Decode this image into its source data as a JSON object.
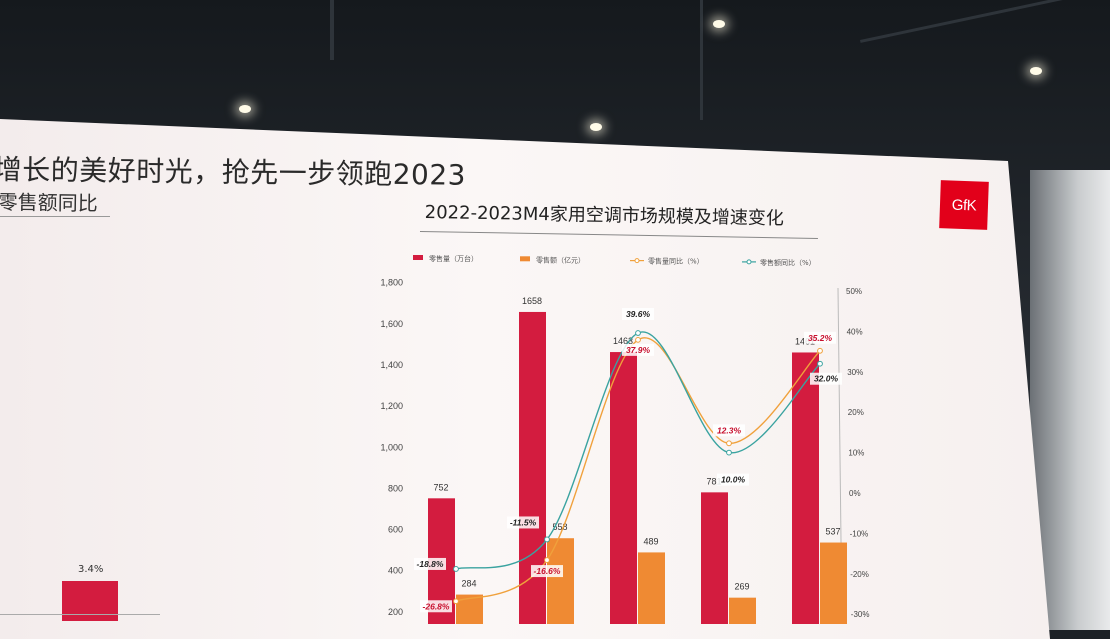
{
  "headline": "增长的美好时光，抢先一步领跑2023",
  "subhead": "零售额同比",
  "left_fragment": {
    "value_label": "3.4%"
  },
  "brand": {
    "logo_text": "GfK",
    "color": "#e2001a"
  },
  "colors": {
    "volume": "#d31c3f",
    "revenue": "#ef8a33",
    "volume_yoy": "#f0a13c",
    "revenue_yoy": "#3aa3a0"
  },
  "chart_data": {
    "type": "bar",
    "title": "2022-2023M4家用空调市场规模及增速变化",
    "legend": [
      "零售量（万台）",
      "零售额（亿元）",
      "零售量同比（%）",
      "零售额同比（%）"
    ],
    "legend_position": "top",
    "y_left_ticks": [
      "1,800",
      "1,600",
      "1,400",
      "1,200",
      "1,000",
      "800",
      "600",
      "400",
      "200"
    ],
    "y_right_ticks": [
      "50%",
      "40%",
      "30%",
      "20%",
      "10%",
      "0%",
      "-10%",
      "-20%",
      "-30%"
    ],
    "y_left_range": [
      0,
      1800
    ],
    "y_right_range": [
      -30,
      50
    ],
    "series": [
      {
        "name": "零售量（万台）",
        "kind": "bar",
        "values": [
          752,
          1658,
          1463,
          781,
          1461
        ],
        "labels": [
          "752",
          "1658",
          "1463",
          "781",
          "1461"
        ]
      },
      {
        "name": "零售额（亿元）",
        "kind": "bar",
        "values": [
          284,
          558,
          489,
          269,
          537
        ],
        "labels": [
          "284",
          "558",
          "489",
          "269",
          "537"
        ]
      },
      {
        "name": "零售量同比（%）",
        "kind": "line",
        "values": [
          -26.8,
          -16.6,
          37.9,
          12.3,
          35.2
        ],
        "labels": [
          "-26.8%",
          "-16.6%",
          "37.9%",
          "12.3%",
          "35.2%"
        ]
      },
      {
        "name": "零售额同比（%）",
        "kind": "line",
        "values": [
          -18.8,
          -11.5,
          39.6,
          10.0,
          32.0
        ],
        "labels": [
          "-18.8%",
          "-11.5%",
          "39.6%",
          "10.0%",
          "32.0%"
        ]
      }
    ]
  }
}
